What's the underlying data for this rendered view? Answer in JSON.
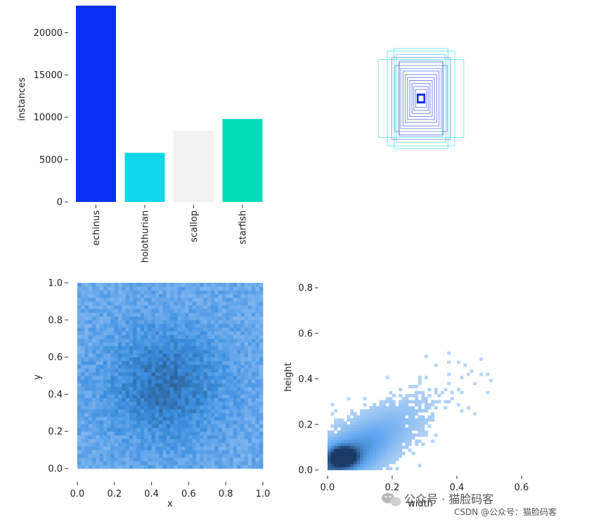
{
  "chart_data": [
    {
      "type": "bar",
      "categories": [
        "echinus",
        "holothurian",
        "scallop",
        "starfish"
      ],
      "values": [
        23200,
        5800,
        8400,
        9800
      ],
      "colors": [
        "#0a30f5",
        "#10d8ea",
        "#f2f2f2",
        "#00dcb6"
      ],
      "ylabel": "instances",
      "ylim": [
        0,
        23200
      ],
      "yticks": [
        0,
        5000,
        10000,
        15000,
        20000
      ],
      "grid": false
    },
    {
      "type": "box-overlay",
      "description_of_marks": "bounding boxes centered, colored by class",
      "boxes": [
        {
          "w": 0.95,
          "h": 0.78,
          "color": "#10d8ea"
        },
        {
          "w": 0.6,
          "h": 1.0,
          "color": "#10d8ea"
        },
        {
          "w": 0.75,
          "h": 0.95,
          "color": "#10d8ea"
        },
        {
          "w": 0.55,
          "h": 0.88,
          "color": "#10d8ea"
        },
        {
          "w": 0.65,
          "h": 0.82,
          "color": "#2a5fe0"
        },
        {
          "w": 0.5,
          "h": 0.72,
          "color": "#2a5fe0"
        },
        {
          "w": 0.58,
          "h": 0.66,
          "color": "#2a5fe0"
        },
        {
          "w": 0.45,
          "h": 0.6,
          "color": "#2a5fe0"
        },
        {
          "w": 0.48,
          "h": 0.75,
          "color": "#2a5fe0"
        },
        {
          "w": 0.4,
          "h": 0.55,
          "color": "#0a30f5"
        },
        {
          "w": 0.35,
          "h": 0.48,
          "color": "#0a30f5"
        },
        {
          "w": 0.3,
          "h": 0.42,
          "color": "#0a30f5"
        },
        {
          "w": 0.25,
          "h": 0.36,
          "color": "#0a30f5"
        },
        {
          "w": 0.2,
          "h": 0.3,
          "color": "#0a30f5"
        },
        {
          "w": 0.16,
          "h": 0.24,
          "color": "#0a30f5"
        },
        {
          "w": 0.12,
          "h": 0.18,
          "color": "#0a30f5"
        }
      ]
    },
    {
      "type": "heatmap",
      "xlabel": "x",
      "ylabel": "y",
      "xlim": [
        0,
        1.0
      ],
      "ylim": [
        0,
        1.0
      ],
      "xticks": [
        0.0,
        0.2,
        0.4,
        0.6,
        0.8,
        1.0
      ],
      "yticks": [
        0.0,
        0.2,
        0.4,
        0.6,
        0.8,
        1.0
      ],
      "bins": 50,
      "density_peak": [
        0.47,
        0.45
      ],
      "colormap": [
        "#7fb6f0",
        "#3c8ee0",
        "#2a5c8c"
      ]
    },
    {
      "type": "heatmap",
      "xlabel": "width",
      "ylabel": "height",
      "xlim": [
        0.0,
        0.6
      ],
      "ylim": [
        0.0,
        0.8
      ],
      "xticks": [
        0.0,
        0.2,
        0.4,
        0.6
      ],
      "yticks": [
        0.0,
        0.2,
        0.4,
        0.6,
        0.8
      ],
      "bins": 60,
      "density_peak": [
        0.05,
        0.06
      ],
      "colormap": [
        "#c6dcf6",
        "#5aa3ef",
        "#1a3a66"
      ]
    }
  ],
  "watermark": {
    "main": "公众号 · 猫脸码客",
    "secondary": "CSDN @公众号：猫脸码客"
  }
}
